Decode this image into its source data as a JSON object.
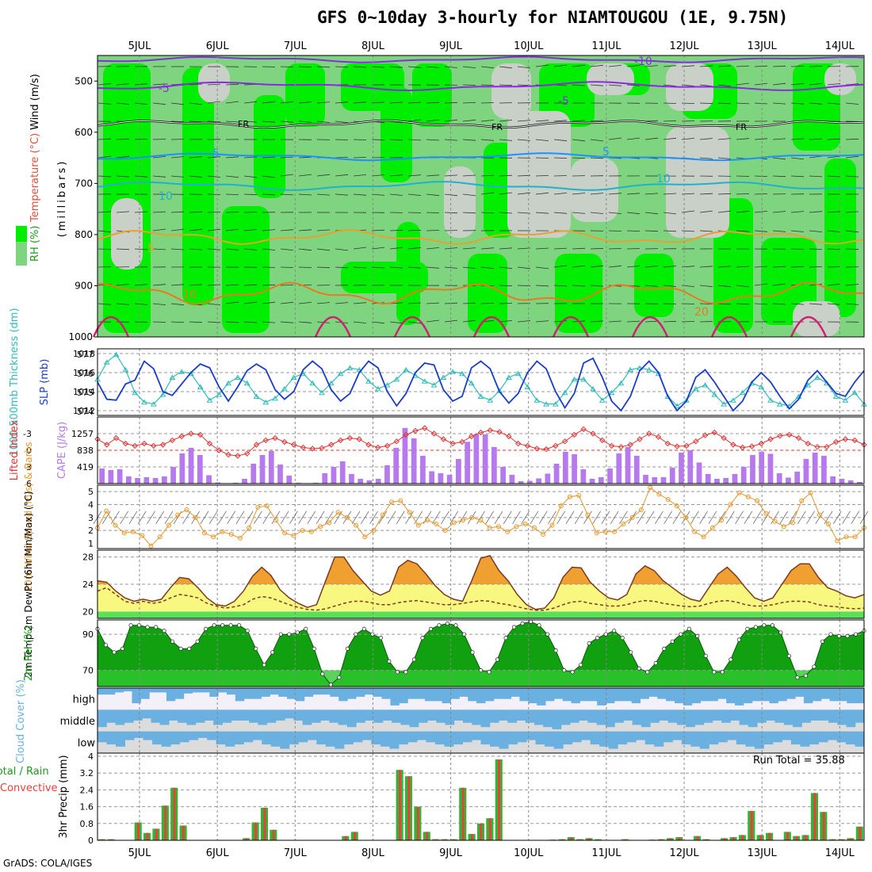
{
  "title": "GFS 0~10day 3-hourly for NIAMTOUGOU (1E, 9.75N)",
  "credit": "GrADS: COLA/IGES",
  "days": [
    "5JUL",
    "6JUL",
    "7JUL",
    "8JUL",
    "9JUL",
    "10JUL",
    "11JUL",
    "12JUL",
    "13JUL",
    "14JUL"
  ],
  "colors": {
    "rh_light": "#7fd57f",
    "rh_bright": "#00ee00",
    "rh_dry": "#c8d0c8",
    "cloud_blue": "#6ab0e0",
    "cloud_gray": "#dcdcdc",
    "precip_green": "#34b434",
    "precip_red": "#f03c3c",
    "cape": "#b67aee",
    "slp": "#1a3cc8",
    "thick": "#30bcbc",
    "li": "#e03434",
    "wind": "#e89628"
  },
  "chart_data": [
    {
      "type": "heatmap",
      "name": "upper",
      "ylabel": "(millibars)",
      "ylabel_parts": [
        "RH (%)",
        "Temperature (°C)",
        "Wind (m/s)"
      ],
      "yticks": [
        "500",
        "600",
        "700",
        "800",
        "900",
        "1000"
      ],
      "contour_labels": {
        "purple": [
          "-10",
          "-5",
          "-5"
        ],
        "freezing": [
          "FR",
          "FR",
          "FR"
        ],
        "blue": [
          "5",
          "5",
          "10",
          "10"
        ],
        "orange": [
          "5",
          "10",
          "20"
        ]
      }
    },
    {
      "type": "line",
      "name": "slp_thickness",
      "ylabel_left": "1000-500mb Thickness (dm)",
      "ylabel_right": "SLP (mb)",
      "left_ticks": [
        "577",
        "576",
        "575",
        "574"
      ],
      "right_ticks": [
        "1018",
        "1016",
        "1014",
        "1012"
      ],
      "left_range": [
        573.8,
        577.3
      ],
      "right_range": [
        1011.5,
        1018.5
      ],
      "slp": [
        1015,
        1013.2,
        1013.1,
        1014.8,
        1015.2,
        1017.2,
        1016.4,
        1014.0,
        1013.6,
        1014.8,
        1016.0,
        1016.9,
        1016.5,
        1014.5,
        1013.0,
        1014.5,
        1016.2,
        1016.9,
        1016.3,
        1014.2,
        1013.2,
        1014.0,
        1016.3,
        1017.2,
        1016.4,
        1014.2,
        1013.0,
        1013.8,
        1016.0,
        1017.2,
        1016.5,
        1014.0,
        1012.5,
        1013.8,
        1016.0,
        1017.0,
        1016.8,
        1014.2,
        1013.0,
        1013.5,
        1016.5,
        1017.2,
        1016.4,
        1014.0,
        1012.8,
        1013.8,
        1016.0,
        1017.2,
        1016.4,
        1014.0,
        1012.3,
        1013.8,
        1017.0,
        1017.5,
        1015.5,
        1013.0,
        1012.0,
        1013.5,
        1016.2,
        1017.2,
        1016.0,
        1013.5,
        1012.0,
        1013.0,
        1015.5,
        1016.3,
        1015.0,
        1013.5,
        1012.0,
        1013.0,
        1015.0,
        1016.0,
        1015.0,
        1013.5,
        1012.2,
        1013.2,
        1015.2,
        1016.2,
        1015.0,
        1013.8,
        1013.5,
        1015.0,
        1016.2
      ],
      "thickness": [
        575.7,
        576.6,
        577.0,
        576.2,
        575.0,
        574.5,
        574.4,
        574.9,
        575.8,
        576.1,
        576.0,
        575.3,
        574.6,
        574.9,
        575.5,
        575.8,
        575.5,
        574.8,
        574.5,
        574.7,
        575.2,
        575.8,
        576.0,
        575.5,
        575.0,
        575.5,
        576.0,
        576.3,
        576.2,
        575.6,
        575.2,
        575.4,
        575.7,
        576.2,
        575.9,
        575.6,
        575.4,
        575.8,
        576.1,
        576.0,
        575.5,
        574.8,
        574.6,
        575.1,
        575.8,
        576.0,
        575.3,
        574.6,
        574.4,
        574.4,
        575.0,
        575.7,
        575.7,
        575.2,
        574.6,
        575.0,
        575.5,
        576.2,
        576.3,
        576.2,
        576.0,
        574.8,
        574.3,
        574.6,
        575.2,
        575.4,
        574.9,
        574.4,
        574.6,
        575.0,
        575.5,
        575.3,
        574.6,
        574.4,
        574.3,
        574.8,
        575.4,
        575.8,
        575.5,
        574.8,
        574.6,
        575.0,
        574.4
      ]
    },
    {
      "type": "bar",
      "name": "cape_li",
      "ylabel_left": "Lifted Index",
      "ylabel_right": "CAPE (J/kg)",
      "left_ticks": [
        "-3",
        "0",
        "3",
        "6"
      ],
      "right_ticks": [
        "1257",
        "838",
        "419"
      ],
      "cape_range": [
        0,
        1676
      ],
      "li_range": [
        6,
        -6
      ],
      "cape": [
        380,
        340,
        360,
        180,
        140,
        160,
        140,
        180,
        420,
        760,
        900,
        720,
        210,
        30,
        10,
        20,
        120,
        500,
        720,
        820,
        480,
        200,
        20,
        10,
        20,
        260,
        420,
        560,
        240,
        120,
        80,
        120,
        460,
        900,
        1400,
        1140,
        700,
        310,
        260,
        220,
        620,
        1050,
        1240,
        1240,
        920,
        420,
        220,
        60,
        70,
        130,
        250,
        500,
        800,
        740,
        360,
        120,
        160,
        380,
        760,
        920,
        700,
        220,
        160,
        160,
        400,
        780,
        840,
        530,
        240,
        120,
        140,
        240,
        420,
        720,
        800,
        750,
        260,
        150,
        300,
        620,
        780,
        700,
        180,
        120,
        80,
        40
      ],
      "li": [
        -2.0,
        -1.0,
        -2.2,
        -1.2,
        -0.8,
        -1.2,
        -0.8,
        -1.0,
        -1.8,
        -2.5,
        -3.0,
        -2.8,
        -1.2,
        0,
        0.8,
        1.0,
        0.6,
        -1.0,
        -1.8,
        -2.2,
        -1.5,
        -1.0,
        -0.5,
        -0.3,
        -0.4,
        -1.0,
        -1.8,
        -2.2,
        -2.0,
        -1.0,
        -0.5,
        -0.8,
        -1.6,
        -2.8,
        -3.5,
        -4.0,
        -3.0,
        -2.0,
        -1.2,
        -1.5,
        -2.5,
        -3.2,
        -3.6,
        -3.3,
        -2.5,
        -1.2,
        -0.8,
        -0.3,
        -0.2,
        -0.8,
        -1.6,
        -2.8,
        -3.8,
        -3.0,
        -1.8,
        -0.8,
        -0.6,
        -1.0,
        -2.0,
        -3.0,
        -2.4,
        -1.2,
        -0.7,
        -0.8,
        -1.6,
        -2.7,
        -3.2,
        -2.2,
        -1.0,
        -0.5,
        -0.7,
        -1.2,
        -2.0,
        -2.6,
        -2.8,
        -2.2,
        -1.2,
        -0.6,
        -0.6,
        -1.5,
        -2.0,
        -1.8,
        -1.0
      ]
    },
    {
      "type": "line",
      "name": "wind10m",
      "ylabel": "10m Wind Speed (m/s) & Barbs",
      "yticks": [
        "5",
        "4",
        "3",
        "2",
        "1"
      ],
      "yrange": [
        0.6,
        5.5
      ],
      "speed": [
        2.2,
        3.5,
        2.4,
        1.8,
        1.9,
        1.6,
        0.8,
        1.5,
        2.4,
        3.2,
        3.6,
        3.0,
        1.8,
        1.5,
        1.9,
        1.7,
        1.4,
        2.2,
        3.8,
        3.9,
        2.8,
        1.8,
        1.6,
        2.0,
        1.9,
        2.3,
        2.6,
        3.4,
        3.0,
        2.4,
        1.5,
        2.0,
        3.2,
        4.2,
        4.3,
        3.4,
        2.4,
        2.8,
        2.5,
        2.0,
        2.6,
        2.8,
        3.0,
        2.8,
        2.2,
        2.3,
        1.9,
        2.3,
        2.5,
        2.2,
        1.7,
        2.4,
        3.9,
        4.6,
        4.7,
        3.2,
        1.8,
        1.9,
        1.9,
        2.5,
        3.0,
        3.6,
        5.3,
        4.8,
        4.4,
        3.9,
        3.0,
        1.9,
        1.5,
        2.2,
        2.8,
        4.0,
        4.9,
        4.6,
        4.3,
        3.3,
        2.7,
        2.3,
        2.6,
        4.3,
        4.9,
        3.2,
        2.5,
        1.2,
        1.5,
        1.5,
        2.2
      ]
    },
    {
      "type": "area",
      "name": "temperature",
      "ylabel": "2m Temp 2m DewPt (6hr Min/Max) (°C)",
      "yticks": [
        "28",
        "24",
        "20"
      ],
      "yrange": [
        19,
        29
      ],
      "temp": [
        24.5,
        24.3,
        23.0,
        22.0,
        21.5,
        21.8,
        21.5,
        21.8,
        23.5,
        25.0,
        24.8,
        23.5,
        22.0,
        21.0,
        20.8,
        21.5,
        23.0,
        25.2,
        26.5,
        25.3,
        23.2,
        22.0,
        21.2,
        20.6,
        21.0,
        24.5,
        28.0,
        28.0,
        26.0,
        24.5,
        23.0,
        22.4,
        23.0,
        26.5,
        27.5,
        27.0,
        25.5,
        23.8,
        22.5,
        21.8,
        21.5,
        24.5,
        27.8,
        28.2,
        26.0,
        24.5,
        22.5,
        21.0,
        20.3,
        20.5,
        22.0,
        25.0,
        26.5,
        26.4,
        24.3,
        23.0,
        22.0,
        21.7,
        22.5,
        25.5,
        26.7,
        26.0,
        24.5,
        23.5,
        22.5,
        21.8,
        21.5,
        23.5,
        25.5,
        26.5,
        25.2,
        23.5,
        22.0,
        21.5,
        22.0,
        24.0,
        26.0,
        27.0,
        27.0,
        25.0,
        23.5,
        23.0,
        22.3,
        22.0,
        22.5
      ],
      "dewpt": [
        23.0,
        23.5,
        22.5,
        21.5,
        21.2,
        21.5,
        21.2,
        21.4,
        22.0,
        22.5,
        22.3,
        22.0,
        21.2,
        20.8,
        20.5,
        20.7,
        21.0,
        21.8,
        22.2,
        22.0,
        21.5,
        21.0,
        20.6,
        20.3,
        20.2,
        20.4,
        20.8,
        21.2,
        21.5,
        21.5,
        21.3,
        21.0,
        21.0,
        21.3,
        21.5,
        21.6,
        21.4,
        21.2,
        21.0,
        21.0,
        21.2,
        21.4,
        21.6,
        21.5,
        21.2,
        21.0,
        20.7,
        20.4,
        20.2,
        20.2,
        20.5,
        21.0,
        21.4,
        21.5,
        21.2,
        21.0,
        20.8,
        20.8,
        21.0,
        21.4,
        21.6,
        21.5,
        21.2,
        21.0,
        20.8,
        20.7,
        20.8,
        21.2,
        21.5,
        21.6,
        21.4,
        21.0,
        20.8,
        20.8,
        21.0,
        21.3,
        21.5,
        21.5,
        21.4,
        21.0,
        20.8,
        20.7,
        20.5,
        20.4,
        20.5
      ]
    },
    {
      "type": "area",
      "name": "rh2m",
      "ylabel": "2m RH (%)",
      "yticks": [
        "90",
        "70"
      ],
      "yrange": [
        61,
        98
      ],
      "rh": [
        93,
        84,
        80,
        82,
        95,
        95,
        94,
        94,
        92,
        86,
        82,
        82,
        86,
        93,
        95,
        95,
        95,
        95,
        92,
        82,
        73,
        80,
        90,
        90,
        91,
        93,
        82,
        68,
        62,
        66,
        82,
        90,
        93,
        90,
        88,
        75,
        69,
        69,
        76,
        88,
        93,
        95,
        96,
        95,
        90,
        80,
        70,
        69,
        76,
        88,
        94,
        96,
        97,
        95,
        90,
        81,
        70,
        69,
        73,
        85,
        88,
        90,
        92,
        88,
        80,
        71,
        69,
        74,
        82,
        86,
        90,
        93,
        89,
        78,
        69,
        69,
        76,
        87,
        93,
        94,
        95,
        95,
        91,
        78,
        66,
        67,
        72,
        86,
        90,
        89,
        89,
        90,
        92
      ]
    },
    {
      "type": "bar",
      "name": "cloud",
      "ylabel": "Cloud Cover (%)",
      "levels": [
        "high",
        "middle",
        "low"
      ],
      "high": [
        30,
        30,
        20,
        15,
        70,
        50,
        20,
        20,
        60,
        50,
        25,
        20,
        20,
        40,
        20,
        30,
        60,
        50,
        50,
        40,
        30,
        40,
        50,
        60,
        40,
        30,
        30,
        40,
        60,
        50,
        40,
        30,
        40,
        50,
        80,
        70,
        50,
        50,
        60,
        60,
        70,
        50,
        40,
        60,
        70,
        60,
        50,
        50,
        40,
        60,
        70,
        80,
        60,
        50,
        60,
        70,
        60,
        60,
        80,
        70,
        60,
        60,
        70,
        50,
        40,
        50,
        60,
        70,
        80,
        70,
        60,
        60,
        50,
        70,
        80,
        70,
        60,
        60,
        70,
        60,
        50,
        40,
        70,
        60,
        50,
        60,
        60,
        70,
        70
      ],
      "middle": [
        80,
        60,
        70,
        60,
        50,
        40,
        60,
        70,
        50,
        60,
        70,
        60,
        50,
        70,
        60,
        50,
        50,
        60,
        70,
        60,
        50,
        40,
        50,
        70,
        60,
        50,
        60,
        70,
        80,
        60,
        50,
        60,
        50,
        60,
        70,
        80,
        60,
        50,
        60,
        70,
        50,
        60,
        70,
        80,
        60,
        50,
        60,
        50,
        60,
        70,
        80,
        90,
        70,
        60,
        50,
        60,
        70,
        80,
        60,
        50,
        70,
        80,
        60,
        50,
        60,
        70,
        80,
        70,
        60,
        50,
        60,
        50,
        70,
        80,
        60,
        50,
        60,
        70,
        80,
        60,
        50,
        50,
        60,
        70,
        80,
        60
      ],
      "low": [
        50,
        60,
        70,
        40,
        30,
        40,
        60,
        70,
        60,
        50,
        40,
        30,
        40,
        60,
        70,
        60,
        50,
        40,
        60,
        70,
        80,
        60,
        50,
        40,
        60,
        70,
        80,
        60,
        50,
        40,
        60,
        70,
        80,
        60,
        50,
        40,
        50,
        60,
        70,
        60,
        50,
        40,
        60,
        70,
        80,
        60,
        50,
        40,
        60,
        70,
        80,
        60,
        50,
        40,
        60,
        70,
        80,
        60,
        50,
        40,
        60,
        70,
        50,
        40,
        60,
        70,
        80,
        60,
        50,
        40,
        60,
        70,
        80,
        60,
        50,
        40,
        60,
        70,
        60,
        50,
        40,
        50,
        60,
        70
      ]
    },
    {
      "type": "bar",
      "name": "precip",
      "ylabel": "3hr Precip (mm)",
      "ylabel_left": "Total / Rain Convective",
      "yticks": [
        "4",
        "3.2",
        "2.4",
        "1.6",
        "0.8",
        "0"
      ],
      "yrange": [
        0,
        4
      ],
      "run_total": "Run Total = 35.88",
      "precip": [
        0.05,
        0.05,
        0,
        0,
        0.85,
        0.35,
        0.55,
        1.65,
        2.5,
        0.7,
        0,
        0,
        0,
        0,
        0,
        0,
        0.1,
        0.85,
        1.55,
        0.5,
        0,
        0,
        0,
        0,
        0,
        0,
        0,
        0.2,
        0.4,
        0,
        0,
        0,
        0,
        3.35,
        3.05,
        1.6,
        0.4,
        0.05,
        0.05,
        0.05,
        2.5,
        0.3,
        0.8,
        1.05,
        3.85,
        0,
        0,
        0,
        0,
        0,
        0.03,
        0.05,
        0.15,
        0.05,
        0.1,
        0.05,
        0,
        0,
        0.05,
        0,
        0,
        0.03,
        0.05,
        0.1,
        0.15,
        0,
        0.2,
        0.05,
        0,
        0.1,
        0.15,
        0.25,
        1.4,
        0.25,
        0.35,
        0,
        0.4,
        0.2,
        0.25,
        2.25,
        1.35,
        0.05,
        0.05,
        0.1,
        0.65
      ]
    }
  ]
}
